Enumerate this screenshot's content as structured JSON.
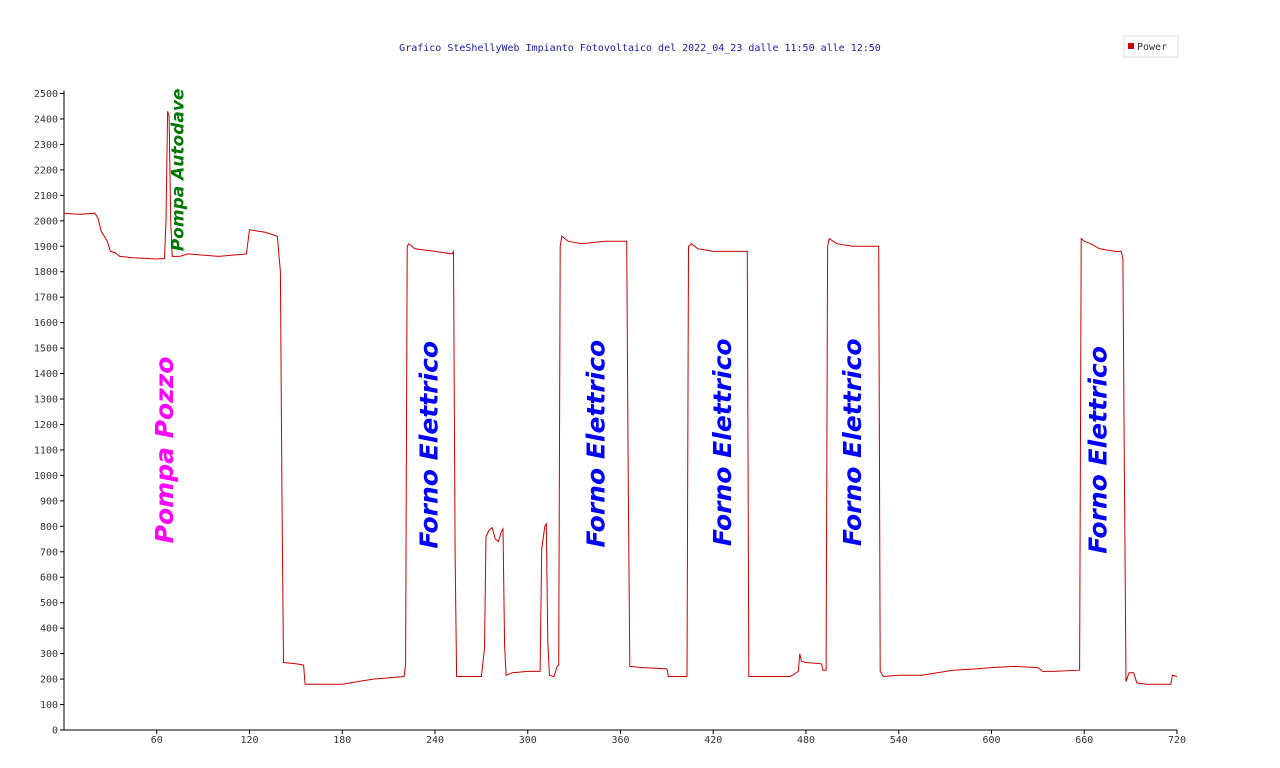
{
  "chart_data": {
    "type": "line",
    "title": "Grafico SteShellyWeb Impianto Fotovoltaico del 2022_04_23 dalle 11:50 alle 12:50",
    "xlabel": "",
    "ylabel": "",
    "xlim": [
      0,
      720
    ],
    "ylim": [
      0,
      2500
    ],
    "x_ticks": [
      60,
      120,
      180,
      240,
      300,
      360,
      420,
      480,
      540,
      600,
      660,
      720
    ],
    "y_ticks": [
      0,
      100,
      200,
      300,
      400,
      500,
      600,
      700,
      800,
      900,
      1000,
      1100,
      1200,
      1300,
      1400,
      1500,
      1600,
      1700,
      1800,
      1900,
      2000,
      2100,
      2200,
      2300,
      2400,
      2500
    ],
    "grid": false,
    "legend_position": "top-right",
    "series": [
      {
        "name": "Power",
        "color": "#cc0000",
        "points": [
          [
            0,
            2030
          ],
          [
            10,
            2025
          ],
          [
            20,
            2030
          ],
          [
            22,
            2010
          ],
          [
            24,
            1960
          ],
          [
            26,
            1940
          ],
          [
            28,
            1920
          ],
          [
            30,
            1880
          ],
          [
            33,
            1875
          ],
          [
            36,
            1860
          ],
          [
            45,
            1855
          ],
          [
            60,
            1850
          ],
          [
            65,
            1852
          ],
          [
            66,
            2000
          ],
          [
            67,
            2430
          ],
          [
            68,
            2410
          ],
          [
            69,
            2000
          ],
          [
            70,
            1860
          ],
          [
            75,
            1860
          ],
          [
            80,
            1870
          ],
          [
            100,
            1860
          ],
          [
            118,
            1870
          ],
          [
            120,
            1965
          ],
          [
            130,
            1955
          ],
          [
            138,
            1940
          ],
          [
            140,
            1800
          ],
          [
            141,
            900
          ],
          [
            142,
            265
          ],
          [
            150,
            260
          ],
          [
            155,
            255
          ],
          [
            156,
            180
          ],
          [
            170,
            180
          ],
          [
            180,
            180
          ],
          [
            190,
            190
          ],
          [
            200,
            200
          ],
          [
            220,
            210
          ],
          [
            221,
            260
          ],
          [
            222,
            1900
          ],
          [
            223,
            1910
          ],
          [
            227,
            1890
          ],
          [
            240,
            1880
          ],
          [
            251,
            1870
          ],
          [
            252,
            1880
          ],
          [
            253,
            700
          ],
          [
            254,
            210
          ],
          [
            270,
            210
          ],
          [
            272,
            320
          ],
          [
            273,
            760
          ],
          [
            275,
            785
          ],
          [
            277,
            795
          ],
          [
            279,
            750
          ],
          [
            281,
            740
          ],
          [
            283,
            780
          ],
          [
            284,
            790
          ],
          [
            285,
            330
          ],
          [
            286,
            215
          ],
          [
            290,
            225
          ],
          [
            300,
            230
          ],
          [
            308,
            230
          ],
          [
            309,
            710
          ],
          [
            311,
            800
          ],
          [
            312,
            810
          ],
          [
            313,
            350
          ],
          [
            314,
            215
          ],
          [
            317,
            210
          ],
          [
            319,
            250
          ],
          [
            320,
            255
          ],
          [
            321,
            1900
          ],
          [
            322,
            1940
          ],
          [
            326,
            1920
          ],
          [
            335,
            1910
          ],
          [
            350,
            1920
          ],
          [
            364,
            1920
          ],
          [
            365,
            1000
          ],
          [
            366,
            250
          ],
          [
            375,
            245
          ],
          [
            390,
            240
          ],
          [
            391,
            210
          ],
          [
            403,
            210
          ],
          [
            404,
            1900
          ],
          [
            406,
            1910
          ],
          [
            410,
            1890
          ],
          [
            420,
            1880
          ],
          [
            442,
            1880
          ],
          [
            443,
            210
          ],
          [
            450,
            210
          ],
          [
            470,
            210
          ],
          [
            475,
            230
          ],
          [
            476,
            300
          ],
          [
            477,
            270
          ],
          [
            480,
            265
          ],
          [
            490,
            260
          ],
          [
            491,
            235
          ],
          [
            493,
            235
          ],
          [
            494,
            1900
          ],
          [
            495,
            1930
          ],
          [
            500,
            1910
          ],
          [
            510,
            1900
          ],
          [
            527,
            1900
          ],
          [
            528,
            230
          ],
          [
            530,
            210
          ],
          [
            540,
            215
          ],
          [
            555,
            215
          ],
          [
            565,
            225
          ],
          [
            575,
            235
          ],
          [
            590,
            240
          ],
          [
            600,
            245
          ],
          [
            615,
            250
          ],
          [
            630,
            245
          ],
          [
            633,
            230
          ],
          [
            640,
            230
          ],
          [
            657,
            235
          ],
          [
            658,
            1930
          ],
          [
            660,
            1920
          ],
          [
            664,
            1910
          ],
          [
            670,
            1890
          ],
          [
            680,
            1880
          ],
          [
            684,
            1880
          ],
          [
            685,
            1850
          ],
          [
            686,
            1000
          ],
          [
            687,
            190
          ],
          [
            689,
            225
          ],
          [
            692,
            225
          ],
          [
            694,
            185
          ],
          [
            700,
            180
          ],
          [
            716,
            180
          ],
          [
            717,
            215
          ],
          [
            720,
            210
          ]
        ]
      }
    ],
    "annotations": [
      {
        "text": "Pompa Pozzo",
        "x": 65,
        "y": 1100,
        "color": "#ff00ff"
      },
      {
        "text": "Pompa Autodave",
        "x": 74,
        "y": 2200,
        "color": "#007700"
      },
      {
        "text": "Forno Elettrico",
        "x": 236,
        "y": 1120,
        "color": "#0000ff"
      },
      {
        "text": "Forno Elettrico",
        "x": 344,
        "y": 1125,
        "color": "#0000ff"
      },
      {
        "text": "Forno Elettrico",
        "x": 426,
        "y": 1130,
        "color": "#0000ff"
      },
      {
        "text": "Forno Elettrico",
        "x": 510,
        "y": 1130,
        "color": "#0000ff"
      },
      {
        "text": "Forno Elettrico",
        "x": 669,
        "y": 1100,
        "color": "#0000ff"
      }
    ]
  }
}
